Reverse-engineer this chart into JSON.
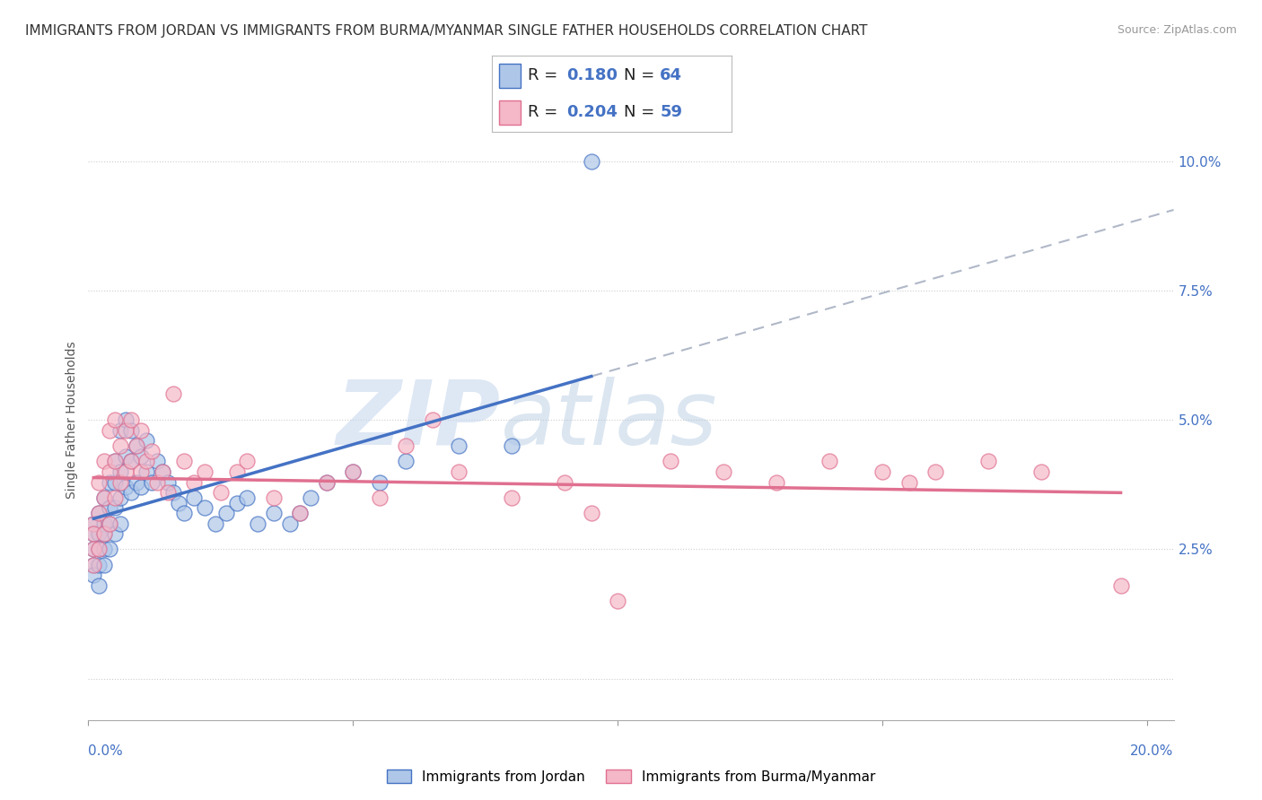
{
  "title": "IMMIGRANTS FROM JORDAN VS IMMIGRANTS FROM BURMA/MYANMAR SINGLE FATHER HOUSEHOLDS CORRELATION CHART",
  "source": "Source: ZipAtlas.com",
  "ylabel": "Single Father Households",
  "legend_jordan": "Immigrants from Jordan",
  "legend_burma": "Immigrants from Burma/Myanmar",
  "R_jordan": 0.18,
  "N_jordan": 64,
  "R_burma": 0.204,
  "N_burma": 59,
  "color_jordan": "#aec6e8",
  "color_burma": "#f4b8c8",
  "trendline_jordan": "#4472c4",
  "trendline_burma": "#e07090",
  "trendline_dashed_color": "#b0b8c8",
  "xlim": [
    0.0,
    0.205
  ],
  "ylim": [
    -0.008,
    0.108
  ],
  "xticks": [
    0.0,
    0.05,
    0.1,
    0.15,
    0.2
  ],
  "yticks": [
    0.0,
    0.025,
    0.05,
    0.075,
    0.1
  ],
  "xticklabels_ends": [
    "0.0%",
    "20.0%"
  ],
  "yticklabels": [
    "",
    "2.5%",
    "5.0%",
    "7.5%",
    "10.0%"
  ],
  "jordan_x": [
    0.001,
    0.001,
    0.001,
    0.001,
    0.001,
    0.002,
    0.002,
    0.002,
    0.002,
    0.002,
    0.003,
    0.003,
    0.003,
    0.003,
    0.003,
    0.004,
    0.004,
    0.004,
    0.004,
    0.005,
    0.005,
    0.005,
    0.005,
    0.006,
    0.006,
    0.006,
    0.006,
    0.007,
    0.007,
    0.007,
    0.008,
    0.008,
    0.008,
    0.009,
    0.009,
    0.01,
    0.01,
    0.011,
    0.011,
    0.012,
    0.013,
    0.014,
    0.015,
    0.016,
    0.017,
    0.018,
    0.02,
    0.022,
    0.024,
    0.026,
    0.028,
    0.03,
    0.032,
    0.035,
    0.038,
    0.04,
    0.042,
    0.045,
    0.05,
    0.055,
    0.06,
    0.07,
    0.08,
    0.095
  ],
  "jordan_y": [
    0.03,
    0.028,
    0.025,
    0.022,
    0.02,
    0.032,
    0.028,
    0.025,
    0.022,
    0.018,
    0.035,
    0.03,
    0.028,
    0.025,
    0.022,
    0.038,
    0.033,
    0.03,
    0.025,
    0.042,
    0.038,
    0.033,
    0.028,
    0.048,
    0.04,
    0.035,
    0.03,
    0.05,
    0.043,
    0.037,
    0.048,
    0.042,
    0.036,
    0.045,
    0.038,
    0.043,
    0.037,
    0.046,
    0.04,
    0.038,
    0.042,
    0.04,
    0.038,
    0.036,
    0.034,
    0.032,
    0.035,
    0.033,
    0.03,
    0.032,
    0.034,
    0.035,
    0.03,
    0.032,
    0.03,
    0.032,
    0.035,
    0.038,
    0.04,
    0.038,
    0.042,
    0.045,
    0.045,
    0.1
  ],
  "burma_x": [
    0.001,
    0.001,
    0.001,
    0.001,
    0.002,
    0.002,
    0.002,
    0.003,
    0.003,
    0.003,
    0.004,
    0.004,
    0.004,
    0.005,
    0.005,
    0.005,
    0.006,
    0.006,
    0.007,
    0.007,
    0.008,
    0.008,
    0.009,
    0.01,
    0.01,
    0.011,
    0.012,
    0.013,
    0.014,
    0.015,
    0.016,
    0.018,
    0.02,
    0.022,
    0.025,
    0.028,
    0.03,
    0.035,
    0.04,
    0.045,
    0.05,
    0.055,
    0.06,
    0.065,
    0.07,
    0.08,
    0.09,
    0.095,
    0.1,
    0.11,
    0.12,
    0.13,
    0.14,
    0.15,
    0.155,
    0.16,
    0.17,
    0.18,
    0.195
  ],
  "burma_y": [
    0.03,
    0.028,
    0.025,
    0.022,
    0.038,
    0.032,
    0.025,
    0.042,
    0.035,
    0.028,
    0.048,
    0.04,
    0.03,
    0.05,
    0.042,
    0.035,
    0.045,
    0.038,
    0.048,
    0.04,
    0.05,
    0.042,
    0.045,
    0.048,
    0.04,
    0.042,
    0.044,
    0.038,
    0.04,
    0.036,
    0.055,
    0.042,
    0.038,
    0.04,
    0.036,
    0.04,
    0.042,
    0.035,
    0.032,
    0.038,
    0.04,
    0.035,
    0.045,
    0.05,
    0.04,
    0.035,
    0.038,
    0.032,
    0.015,
    0.042,
    0.04,
    0.038,
    0.042,
    0.04,
    0.038,
    0.04,
    0.042,
    0.04,
    0.018
  ],
  "watermark_zip": "ZIP",
  "watermark_atlas": "atlas",
  "title_fontsize": 11,
  "source_fontsize": 9,
  "axis_label_fontsize": 10,
  "tick_fontsize": 11,
  "legend_fontsize": 13,
  "background_color": "#ffffff",
  "grid_color": "#cccccc"
}
